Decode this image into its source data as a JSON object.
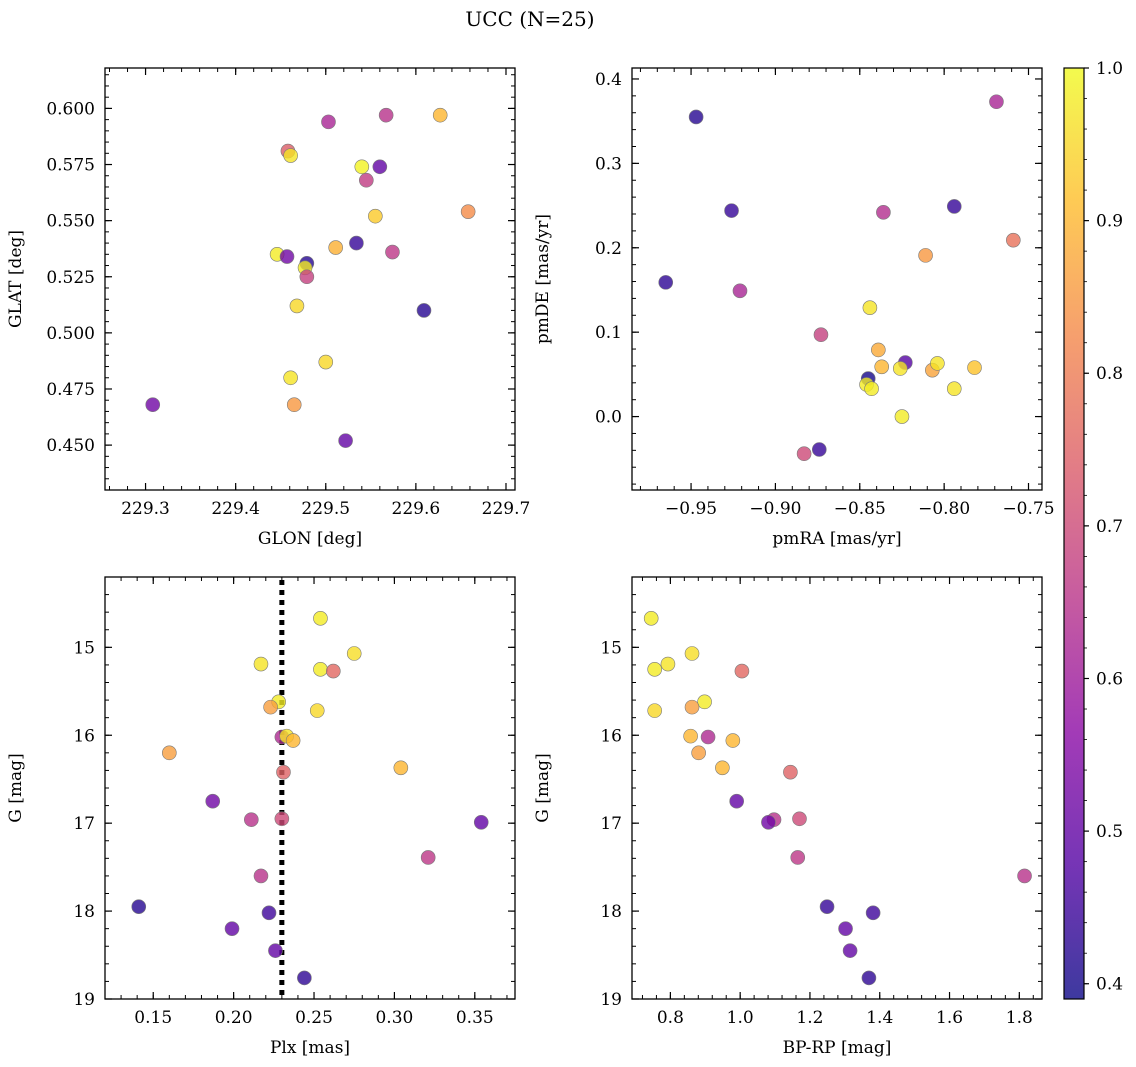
{
  "figure": {
    "title": "UCC (N=25)"
  },
  "colormap": {
    "name": "plasma",
    "range": [
      0.39,
      1.0
    ],
    "ticks": [
      0.4,
      0.5,
      0.6,
      0.7,
      0.8,
      0.9,
      1.0
    ],
    "tick_labels": [
      "0.4",
      "0.5",
      "0.6",
      "0.7",
      "0.8",
      "0.9",
      "1.0"
    ],
    "stops": [
      "#0d0887",
      "#5302a3",
      "#8b0aa5",
      "#b83289",
      "#db5c68",
      "#f48849",
      "#febd2a",
      "#f0f921"
    ]
  },
  "chart_data": [
    {
      "type": "scatter",
      "xlabel": "GLON [deg]",
      "ylabel": "GLAT [deg]",
      "xlim": [
        229.255,
        229.71
      ],
      "ylim": [
        0.43,
        0.618
      ],
      "xticks": [
        229.3,
        229.4,
        229.5,
        229.6,
        229.7
      ],
      "xtick_labels": [
        "229.3",
        "229.4",
        "229.5",
        "229.6",
        "229.7"
      ],
      "yticks": [
        0.45,
        0.475,
        0.5,
        0.525,
        0.55,
        0.575,
        0.6
      ],
      "ytick_labels": [
        "0.450",
        "0.475",
        "0.500",
        "0.525",
        "0.550",
        "0.575",
        "0.600"
      ],
      "x": [
        229.503,
        229.567,
        229.627,
        229.458,
        229.461,
        229.54,
        229.56,
        229.545,
        229.555,
        229.658,
        229.511,
        229.534,
        229.446,
        229.457,
        229.479,
        229.574,
        229.477,
        229.479,
        229.468,
        229.609,
        229.5,
        229.461,
        229.308,
        229.465,
        229.522
      ],
      "y": [
        0.594,
        0.597,
        0.597,
        0.581,
        0.579,
        0.574,
        0.574,
        0.568,
        0.552,
        0.554,
        0.538,
        0.54,
        0.535,
        0.534,
        0.531,
        0.536,
        0.529,
        0.525,
        0.512,
        0.51,
        0.487,
        0.48,
        0.468,
        0.468,
        0.452
      ],
      "color_value": [
        0.62,
        0.65,
        0.9,
        0.74,
        0.97,
        0.99,
        0.5,
        0.67,
        0.93,
        0.83,
        0.89,
        0.44,
        0.98,
        0.52,
        0.42,
        0.66,
        0.98,
        0.68,
        0.95,
        0.42,
        0.95,
        0.97,
        0.52,
        0.85,
        0.5
      ]
    },
    {
      "type": "scatter",
      "xlabel": "pmRA [mas/yr]",
      "ylabel": "pmDE [mas/yr]",
      "xlim": [
        -0.985,
        -0.742
      ],
      "ylim": [
        -0.087,
        0.413
      ],
      "xticks": [
        -0.95,
        -0.9,
        -0.85,
        -0.8,
        -0.75
      ],
      "xtick_labels": [
        "−0.95",
        "−0.90",
        "−0.85",
        "−0.80",
        "−0.75"
      ],
      "yticks": [
        0.0,
        0.1,
        0.2,
        0.3,
        0.4
      ],
      "ytick_labels": [
        "0.0",
        "0.1",
        "0.2",
        "0.3",
        "0.4"
      ],
      "x": [
        -0.947,
        -0.769,
        -0.926,
        -0.836,
        -0.794,
        -0.759,
        -0.811,
        -0.965,
        -0.921,
        -0.873,
        -0.844,
        -0.839,
        -0.837,
        -0.823,
        -0.826,
        -0.807,
        -0.804,
        -0.782,
        -0.845,
        -0.846,
        -0.843,
        -0.794,
        -0.825,
        -0.883,
        -0.874
      ],
      "y": [
        0.355,
        0.373,
        0.244,
        0.242,
        0.249,
        0.209,
        0.191,
        0.159,
        0.149,
        0.097,
        0.129,
        0.079,
        0.059,
        0.064,
        0.057,
        0.055,
        0.063,
        0.058,
        0.045,
        0.038,
        0.033,
        0.033,
        0.0,
        -0.044,
        -0.039
      ],
      "color_value": [
        0.42,
        0.62,
        0.44,
        0.64,
        0.44,
        0.78,
        0.85,
        0.43,
        0.62,
        0.68,
        0.97,
        0.88,
        0.9,
        0.48,
        0.97,
        0.87,
        0.97,
        0.92,
        0.4,
        0.98,
        0.98,
        0.97,
        0.98,
        0.7,
        0.44
      ]
    },
    {
      "type": "scatter",
      "xlabel": "Plx [mas]",
      "ylabel": "G [mag]",
      "y_inverted": true,
      "xlim": [
        0.12,
        0.375
      ],
      "ylim": [
        19.0,
        14.2
      ],
      "reference_line": {
        "axis": "x",
        "value": 0.23,
        "style": "dotted",
        "color": "#000000"
      },
      "xticks": [
        0.15,
        0.2,
        0.25,
        0.3,
        0.35
      ],
      "xtick_labels": [
        "0.15",
        "0.20",
        "0.25",
        "0.30",
        "0.35"
      ],
      "yticks": [
        15,
        16,
        17,
        18,
        19
      ],
      "ytick_labels": [
        "15",
        "16",
        "17",
        "18",
        "19"
      ],
      "x": [
        0.254,
        0.275,
        0.217,
        0.254,
        0.262,
        0.228,
        0.252,
        0.223,
        0.23,
        0.233,
        0.237,
        0.16,
        0.231,
        0.304,
        0.187,
        0.211,
        0.23,
        0.354,
        0.321,
        0.217,
        0.141,
        0.222,
        0.199,
        0.226,
        0.244
      ],
      "y": [
        14.67,
        15.07,
        15.19,
        15.25,
        15.27,
        15.62,
        15.72,
        15.68,
        16.02,
        16.01,
        16.06,
        16.2,
        16.42,
        16.37,
        16.75,
        16.96,
        16.95,
        16.99,
        17.39,
        17.6,
        17.95,
        18.02,
        18.2,
        18.45,
        18.76
      ],
      "color_value": [
        0.98,
        0.96,
        0.97,
        0.98,
        0.76,
        0.98,
        0.95,
        0.86,
        0.63,
        0.97,
        0.9,
        0.86,
        0.75,
        0.9,
        0.52,
        0.65,
        0.7,
        0.5,
        0.66,
        0.65,
        0.42,
        0.45,
        0.5,
        0.5,
        0.43
      ]
    },
    {
      "type": "scatter",
      "xlabel": "BP-RP [mag]",
      "ylabel": "G [mag]",
      "y_inverted": true,
      "xlim": [
        0.69,
        1.865
      ],
      "ylim": [
        19.0,
        14.2
      ],
      "xticks": [
        0.8,
        1.0,
        1.2,
        1.4,
        1.6,
        1.8
      ],
      "xtick_labels": [
        "0.8",
        "1.0",
        "1.2",
        "1.4",
        "1.6",
        "1.8"
      ],
      "yticks": [
        15,
        16,
        17,
        18,
        19
      ],
      "ytick_labels": [
        "15",
        "16",
        "17",
        "18",
        "19"
      ],
      "x": [
        0.745,
        0.862,
        0.793,
        0.755,
        1.005,
        0.898,
        0.755,
        0.862,
        0.908,
        0.858,
        0.979,
        0.881,
        1.144,
        0.949,
        0.99,
        1.097,
        1.17,
        1.081,
        1.165,
        1.815,
        1.249,
        1.381,
        1.302,
        1.315,
        1.369
      ],
      "y": [
        14.67,
        15.07,
        15.19,
        15.25,
        15.27,
        15.62,
        15.72,
        15.68,
        16.02,
        16.01,
        16.06,
        16.2,
        16.42,
        16.37,
        16.75,
        16.96,
        16.95,
        16.99,
        17.39,
        17.6,
        17.95,
        18.02,
        18.2,
        18.45,
        18.76
      ],
      "color_value": [
        0.98,
        0.96,
        0.97,
        0.98,
        0.76,
        0.98,
        0.95,
        0.86,
        0.63,
        0.9,
        0.9,
        0.86,
        0.75,
        0.9,
        0.5,
        0.65,
        0.7,
        0.52,
        0.66,
        0.65,
        0.44,
        0.45,
        0.5,
        0.5,
        0.43
      ]
    }
  ]
}
